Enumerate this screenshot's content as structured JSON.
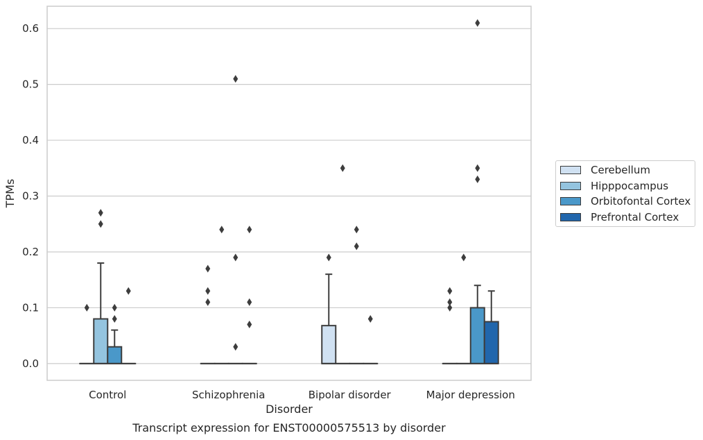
{
  "chart_data": {
    "type": "box",
    "xlabel": "Disorder",
    "ylabel": "TPMs",
    "caption": "Transcript expression for ENST00000575513 by disorder",
    "categories": [
      "Control",
      "Schizophrenia",
      "Bipolar disorder",
      "Major depression"
    ],
    "ylim": [
      -0.03,
      0.64
    ],
    "yticks": [
      "0.0",
      "0.1",
      "0.2",
      "0.3",
      "0.4",
      "0.5",
      "0.6"
    ],
    "grid": "horizontal",
    "legend_position": "right",
    "series": [
      {
        "name": "Cerebellum",
        "color": "#d0e1f2",
        "boxes": [
          {
            "q1": 0,
            "median": 0,
            "q3": 0,
            "whisker_low": 0,
            "whisker_high": 0,
            "outliers": [
              0.1
            ]
          },
          {
            "q1": 0,
            "median": 0,
            "q3": 0,
            "whisker_low": 0,
            "whisker_high": 0,
            "outliers": [
              0.11,
              0.13,
              0.17
            ]
          },
          {
            "q1": 0,
            "median": 0,
            "q3": 0.068,
            "whisker_low": 0,
            "whisker_high": 0.16,
            "outliers": [
              0.19
            ]
          },
          {
            "q1": 0,
            "median": 0,
            "q3": 0,
            "whisker_low": 0,
            "whisker_high": 0,
            "outliers": [
              0.1,
              0.11,
              0.13
            ]
          }
        ]
      },
      {
        "name": "Hipppocampus",
        "color": "#94c4df",
        "boxes": [
          {
            "q1": 0,
            "median": 0,
            "q3": 0.08,
            "whisker_low": 0,
            "whisker_high": 0.18,
            "outliers": [
              0.25,
              0.27
            ]
          },
          {
            "q1": 0,
            "median": 0,
            "q3": 0,
            "whisker_low": 0,
            "whisker_high": 0,
            "outliers": [
              0.24
            ]
          },
          {
            "q1": 0,
            "median": 0,
            "q3": 0,
            "whisker_low": 0,
            "whisker_high": 0,
            "outliers": [
              0.35
            ]
          },
          {
            "q1": 0,
            "median": 0,
            "q3": 0,
            "whisker_low": 0,
            "whisker_high": 0,
            "outliers": [
              0.19
            ]
          }
        ]
      },
      {
        "name": "Orbitofontal Cortex",
        "color": "#4a98c9",
        "boxes": [
          {
            "q1": 0,
            "median": 0,
            "q3": 0.03,
            "whisker_low": 0,
            "whisker_high": 0.06,
            "outliers": [
              0.08,
              0.1
            ]
          },
          {
            "q1": 0,
            "median": 0,
            "q3": 0,
            "whisker_low": 0,
            "whisker_high": 0,
            "outliers": [
              0.03,
              0.19,
              0.51
            ]
          },
          {
            "q1": 0,
            "median": 0,
            "q3": 0,
            "whisker_low": 0,
            "whisker_high": 0,
            "outliers": [
              0.21,
              0.24
            ]
          },
          {
            "q1": 0,
            "median": 0,
            "q3": 0.1,
            "whisker_low": 0,
            "whisker_high": 0.14,
            "outliers": [
              0.33,
              0.35,
              0.61
            ]
          }
        ]
      },
      {
        "name": "Prefrontal Cortex",
        "color": "#2166ac",
        "boxes": [
          {
            "q1": 0,
            "median": 0,
            "q3": 0,
            "whisker_low": 0,
            "whisker_high": 0,
            "outliers": [
              0.13
            ]
          },
          {
            "q1": 0,
            "median": 0,
            "q3": 0,
            "whisker_low": 0,
            "whisker_high": 0,
            "outliers": [
              0.07,
              0.11,
              0.24
            ]
          },
          {
            "q1": 0,
            "median": 0,
            "q3": 0,
            "whisker_low": 0,
            "whisker_high": 0,
            "outliers": [
              0.08
            ]
          },
          {
            "q1": 0,
            "median": 0,
            "q3": 0.075,
            "whisker_low": 0,
            "whisker_high": 0.13,
            "outliers": []
          }
        ]
      }
    ]
  }
}
